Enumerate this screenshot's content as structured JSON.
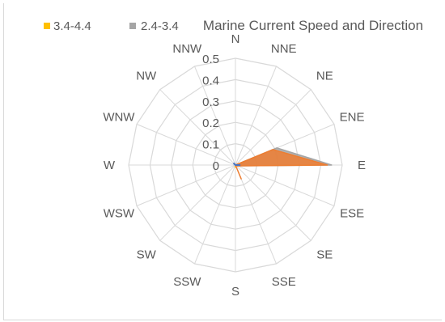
{
  "chart_data": {
    "type": "radar",
    "title": "Marine Current Speed and Direction",
    "directions": [
      "N",
      "NNE",
      "NE",
      "ENE",
      "E",
      "ESE",
      "SE",
      "SSE",
      "S",
      "SSW",
      "SW",
      "WSW",
      "W",
      "WNW",
      "NW",
      "NNW"
    ],
    "radial_ticks": [
      "0",
      "0.1",
      "0.2",
      "0.3",
      "0.4",
      "0.5"
    ],
    "rlim": [
      0,
      0.5
    ],
    "legend_position": "top-left",
    "grid": true,
    "series": [
      {
        "name": "3.4-4.4",
        "color": "#ffc000",
        "values": [
          0,
          0,
          0,
          0,
          0,
          0,
          0,
          0.005,
          0.01,
          0,
          0,
          0,
          0,
          0,
          0,
          0
        ]
      },
      {
        "name": "2.4-3.4",
        "color": "#a5a5a5",
        "values": [
          0,
          0,
          0,
          0.21,
          0.45,
          0.01,
          0,
          0,
          0,
          0,
          0,
          0,
          0,
          0,
          0,
          0
        ]
      },
      {
        "name": "",
        "color": "#ed7d31",
        "values": [
          0,
          0,
          0,
          0.19,
          0.43,
          0.01,
          0,
          0.07,
          0,
          0,
          0,
          0,
          0,
          0,
          0,
          0
        ]
      },
      {
        "name": "",
        "color": "#4472c4",
        "values": [
          0,
          0,
          0,
          0,
          0.02,
          0,
          0,
          0,
          0,
          0,
          0,
          0,
          0,
          0,
          0.01,
          0
        ]
      }
    ]
  }
}
